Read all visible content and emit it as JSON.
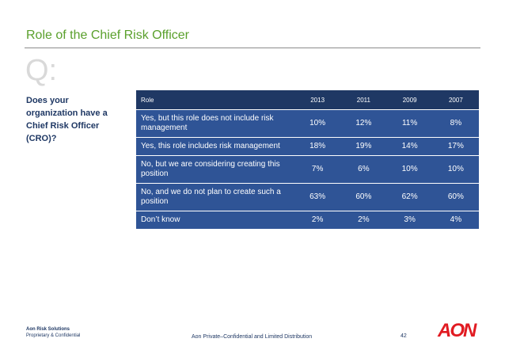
{
  "slide": {
    "title": "Role of the Chief Risk Officer",
    "q_mark": "Q:",
    "question": "Does your organization have a Chief Risk Officer (CRO)?"
  },
  "table": {
    "headers": [
      "Role",
      "2013",
      "2011",
      "2009",
      "2007"
    ],
    "rows": [
      {
        "role": "Yes, but this role does not include risk management",
        "values": [
          "10%",
          "12%",
          "11%",
          "8%"
        ]
      },
      {
        "role": "Yes, this role includes risk management",
        "values": [
          "18%",
          "19%",
          "14%",
          "17%"
        ]
      },
      {
        "role": "No, but we are considering creating this position",
        "values": [
          "7%",
          "6%",
          "10%",
          "10%"
        ]
      },
      {
        "role": "No, and we do not plan to create such a position",
        "values": [
          "63%",
          "60%",
          "62%",
          "60%"
        ]
      },
      {
        "role": "Don’t know",
        "values": [
          "2%",
          "2%",
          "3%",
          "4%"
        ]
      }
    ]
  },
  "footer": {
    "company": "Aon Risk Solutions",
    "classification": "Proprietary & Confidential",
    "notice": "Aon Private–Confidential and Limited Distribution",
    "page_number": "42",
    "logo_text": "AON"
  },
  "colors": {
    "title_green": "#5aa02c",
    "header_navy": "#1f3864",
    "row_blue": "#2f5496",
    "logo_red": "#e11b22"
  }
}
